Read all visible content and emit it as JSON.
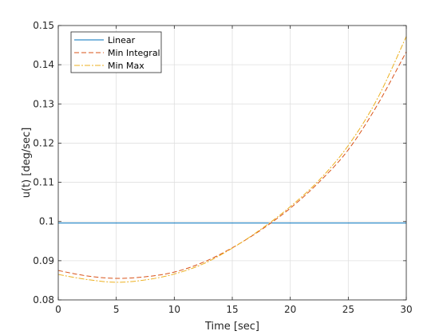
{
  "chart_data": {
    "type": "line",
    "title": "",
    "xlabel": "Time [sec]",
    "ylabel": "u(t) [deg/sec]",
    "xlim": [
      0,
      30
    ],
    "ylim": [
      0.08,
      0.15
    ],
    "xticks": [
      0,
      5,
      10,
      15,
      20,
      25,
      30
    ],
    "yticks": [
      0.08,
      0.09,
      0.1,
      0.11,
      0.12,
      0.13,
      0.14,
      0.15
    ],
    "xtick_labels": [
      "0",
      "5",
      "10",
      "15",
      "20",
      "25",
      "30"
    ],
    "ytick_labels": [
      "0.08",
      "0.09",
      "0.1",
      "0.11",
      "0.12",
      "0.13",
      "0.14",
      "0.15"
    ],
    "grid": true,
    "box": true,
    "legend_position": "top-left",
    "series": [
      {
        "name": "Linear",
        "color": "#0072BD",
        "line_style": "solid",
        "x": [
          0,
          30
        ],
        "y": [
          0.0996,
          0.0996
        ]
      },
      {
        "name": "Min Integral",
        "color": "#D95319",
        "line_style": "dashed",
        "x": [
          0,
          2.5,
          5,
          7.5,
          10,
          12.5,
          15,
          17.5,
          20,
          22.5,
          25,
          27.5,
          30
        ],
        "y": [
          0.0875,
          0.0861,
          0.0855,
          0.0859,
          0.0871,
          0.0896,
          0.0933,
          0.0979,
          0.1034,
          0.1101,
          0.1183,
          0.1297,
          0.1433
        ]
      },
      {
        "name": "Min Max",
        "color": "#EDB120",
        "line_style": "dash-dot",
        "x": [
          0,
          2.5,
          5,
          7.5,
          10,
          12.5,
          15,
          17.5,
          20,
          22.5,
          25,
          27.5,
          30
        ],
        "y": [
          0.0865,
          0.0852,
          0.0845,
          0.0851,
          0.0866,
          0.0892,
          0.0932,
          0.0981,
          0.1038,
          0.1106,
          0.1194,
          0.1313,
          0.1472
        ]
      }
    ]
  }
}
